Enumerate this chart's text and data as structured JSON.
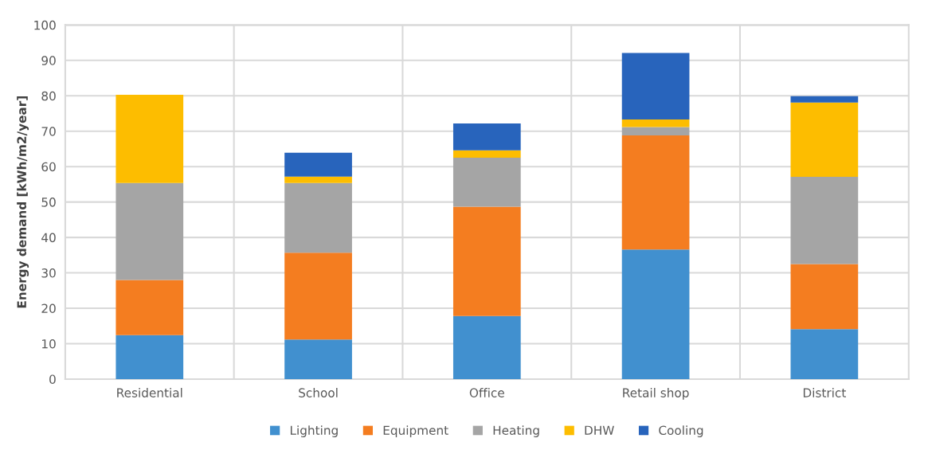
{
  "chart_data": {
    "type": "bar",
    "stacked": true,
    "ylabel": "Energy demand [kWh/m2/year]",
    "categories": [
      "Residential",
      "School",
      "Office",
      "Retail shop",
      "District"
    ],
    "series": [
      {
        "name": "Lighting",
        "color": "#4190cf",
        "values": [
          12.4,
          11.2,
          17.8,
          36.6,
          14.1
        ]
      },
      {
        "name": "Equipment",
        "color": "#f47d20",
        "values": [
          15.6,
          24.5,
          30.9,
          32.2,
          18.4
        ]
      },
      {
        "name": "Heating",
        "color": "#a5a5a5",
        "values": [
          27.4,
          19.7,
          13.8,
          2.4,
          24.6
        ]
      },
      {
        "name": "DHW",
        "color": "#fdbd00",
        "values": [
          24.9,
          1.8,
          2.1,
          2.1,
          21.0
        ]
      },
      {
        "name": "Cooling",
        "color": "#2864bc",
        "values": [
          0,
          6.7,
          7.6,
          18.8,
          1.8
        ]
      }
    ],
    "ylim": [
      0,
      100
    ],
    "yticks": [
      0,
      10,
      20,
      30,
      40,
      50,
      60,
      70,
      80,
      90,
      100
    ],
    "grid": true,
    "legend": "bottom"
  }
}
